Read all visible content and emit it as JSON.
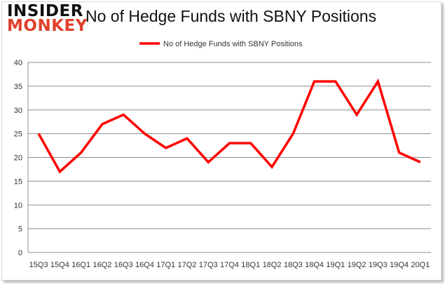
{
  "logo": {
    "line1": "INSIDER",
    "line2": "MONKEY"
  },
  "chart_data": {
    "type": "line",
    "title": "No of Hedge Funds with SBNY Positions",
    "categories": [
      "15Q3",
      "15Q4",
      "16Q1",
      "16Q2",
      "16Q3",
      "16Q4",
      "17Q1",
      "17Q2",
      "17Q3",
      "17Q4",
      "18Q1",
      "18Q2",
      "18Q3",
      "18Q4",
      "19Q1",
      "19Q2",
      "19Q3",
      "19Q4",
      "20Q1"
    ],
    "series": [
      {
        "name": "No of Hedge Funds with SBNY Positions",
        "color": "#ff0000",
        "values": [
          25,
          17,
          21,
          27,
          29,
          25,
          22,
          24,
          19,
          23,
          23,
          18,
          25,
          36,
          36,
          29,
          36,
          21,
          19
        ]
      }
    ],
    "ylim": [
      0,
      40
    ],
    "yticks": [
      0,
      5,
      10,
      15,
      20,
      25,
      30,
      35,
      40
    ],
    "grid": true,
    "legend": "top-center"
  }
}
